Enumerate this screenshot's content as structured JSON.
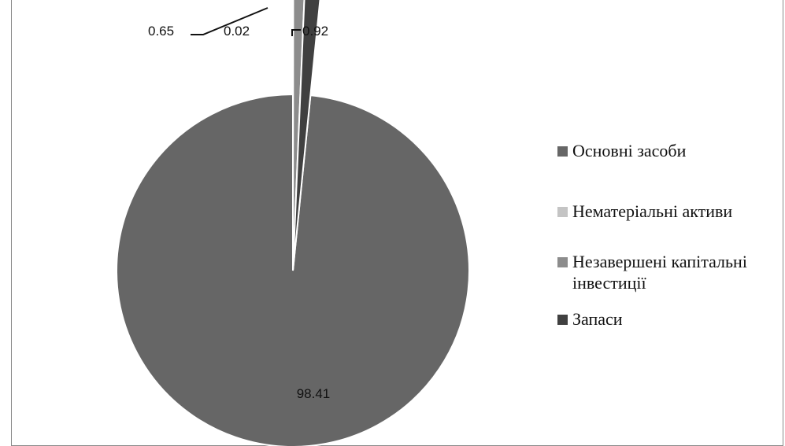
{
  "chart_data": {
    "type": "pie",
    "slices": [
      {
        "label": "Основні засоби",
        "value": 98.41,
        "color": "#666666"
      },
      {
        "label": "Нематеріальні активи",
        "value": 0.02,
        "color": "#c4c4c4"
      },
      {
        "label": "Незавершені капітальні інвестиції",
        "value": 0.65,
        "color": "#8c8c8c"
      },
      {
        "label": "Запаси",
        "value": 0.92,
        "color": "#404040"
      }
    ],
    "data_labels": [
      "98.41",
      "0.02",
      "0.65",
      "0.92"
    ],
    "legend_position": "right"
  }
}
